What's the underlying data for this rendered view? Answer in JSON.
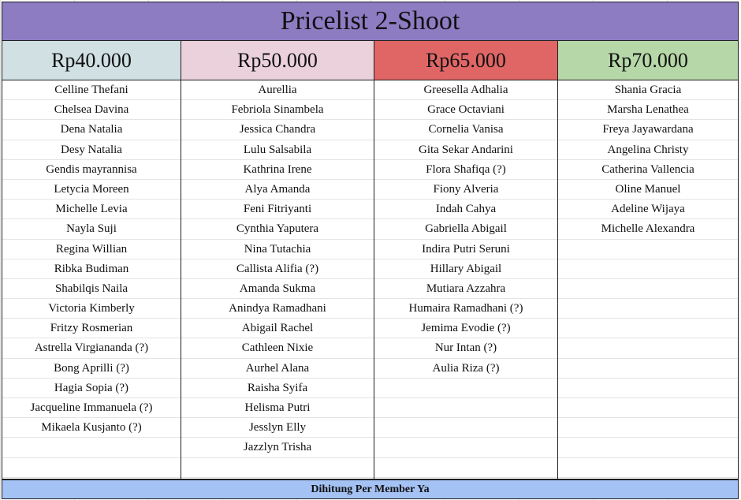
{
  "title": "Pricelist 2-Shoot",
  "footer": "Dihitung Per Member Ya",
  "columns": [
    {
      "price": "Rp40.000",
      "color": "#d0e0e3",
      "names": [
        "Celline Thefani",
        "Chelsea Davina",
        "Dena Natalia",
        "Desy Natalia",
        "Gendis mayrannisa",
        "Letycia Moreen",
        "Michelle Levia",
        "Nayla Suji",
        "Regina Willian",
        "Ribka Budiman",
        "Shabilqis Naila",
        "Victoria Kimberly",
        "Fritzy Rosmerian",
        "Astrella Virgiananda (?)",
        "Bong Aprilli (?)",
        "Hagia Sopia (?)",
        "Jacqueline Immanuela (?)",
        "Mikaela Kusjanto (?)"
      ]
    },
    {
      "price": "Rp50.000",
      "color": "#ead1dc",
      "names": [
        "Aurellia",
        "Febriola Sinambela",
        "Jessica Chandra",
        "Lulu Salsabila",
        "Kathrina Irene",
        "Alya Amanda",
        "Feni Fitriyanti",
        "Cynthia Yaputera",
        "Nina Tutachia",
        "Callista Alifia (?)",
        "Amanda Sukma",
        "Anindya Ramadhani",
        "Abigail Rachel",
        "Cathleen Nixie",
        "Aurhel Alana",
        "Raisha Syifa",
        "Helisma Putri",
        "Jesslyn Elly",
        "Jazzlyn Trisha"
      ]
    },
    {
      "price": "Rp65.000",
      "color": "#e06666",
      "names": [
        "Greesella Adhalia",
        "Grace Octaviani",
        "Cornelia Vanisa",
        "Gita Sekar Andarini",
        "Flora Shafiqa (?)",
        "Fiony Alveria",
        "Indah Cahya",
        "Gabriella Abigail",
        "Indira Putri Seruni",
        "Hillary Abigail",
        "Mutiara Azzahra",
        "Humaira Ramadhani (?)",
        "Jemima Evodie (?)",
        "Nur Intan (?)",
        "Aulia Riza (?)"
      ]
    },
    {
      "price": "Rp70.000",
      "color": "#b6d7a8",
      "names": [
        "Shania Gracia",
        "Marsha Lenathea",
        "Freya Jayawardana",
        "Angelina Christy",
        "Catherina Vallencia",
        "Oline Manuel",
        "Adeline Wijaya",
        "Michelle Alexandra"
      ]
    }
  ],
  "colors": {
    "title_bg": "#8e7cc3",
    "footer_bg": "#a4c2f4",
    "border": "#1f1f1f",
    "row_divider": "#e4e4e4"
  }
}
